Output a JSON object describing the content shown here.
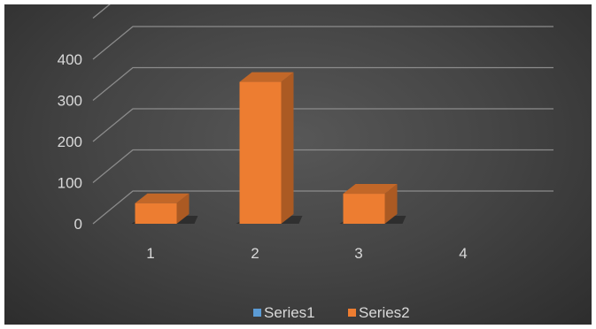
{
  "chart_data": {
    "type": "bar",
    "style": "3d-column",
    "categories": [
      "1",
      "2",
      "3",
      "4"
    ],
    "series": [
      {
        "name": "Series1",
        "values": [
          0,
          0,
          0,
          0
        ],
        "color": "#5b9bd5"
      },
      {
        "name": "Series2",
        "values": [
          50,
          345,
          73,
          0
        ],
        "color": "#ed7d31"
      }
    ],
    "y_ticks": [
      "0",
      "100",
      "200",
      "300",
      "400"
    ],
    "ylim": [
      0,
      400
    ],
    "grid": true,
    "legend_position": "bottom",
    "background": "#404040",
    "text_color": "#d9d9d9",
    "gridline_color": "#8c8c8c"
  }
}
